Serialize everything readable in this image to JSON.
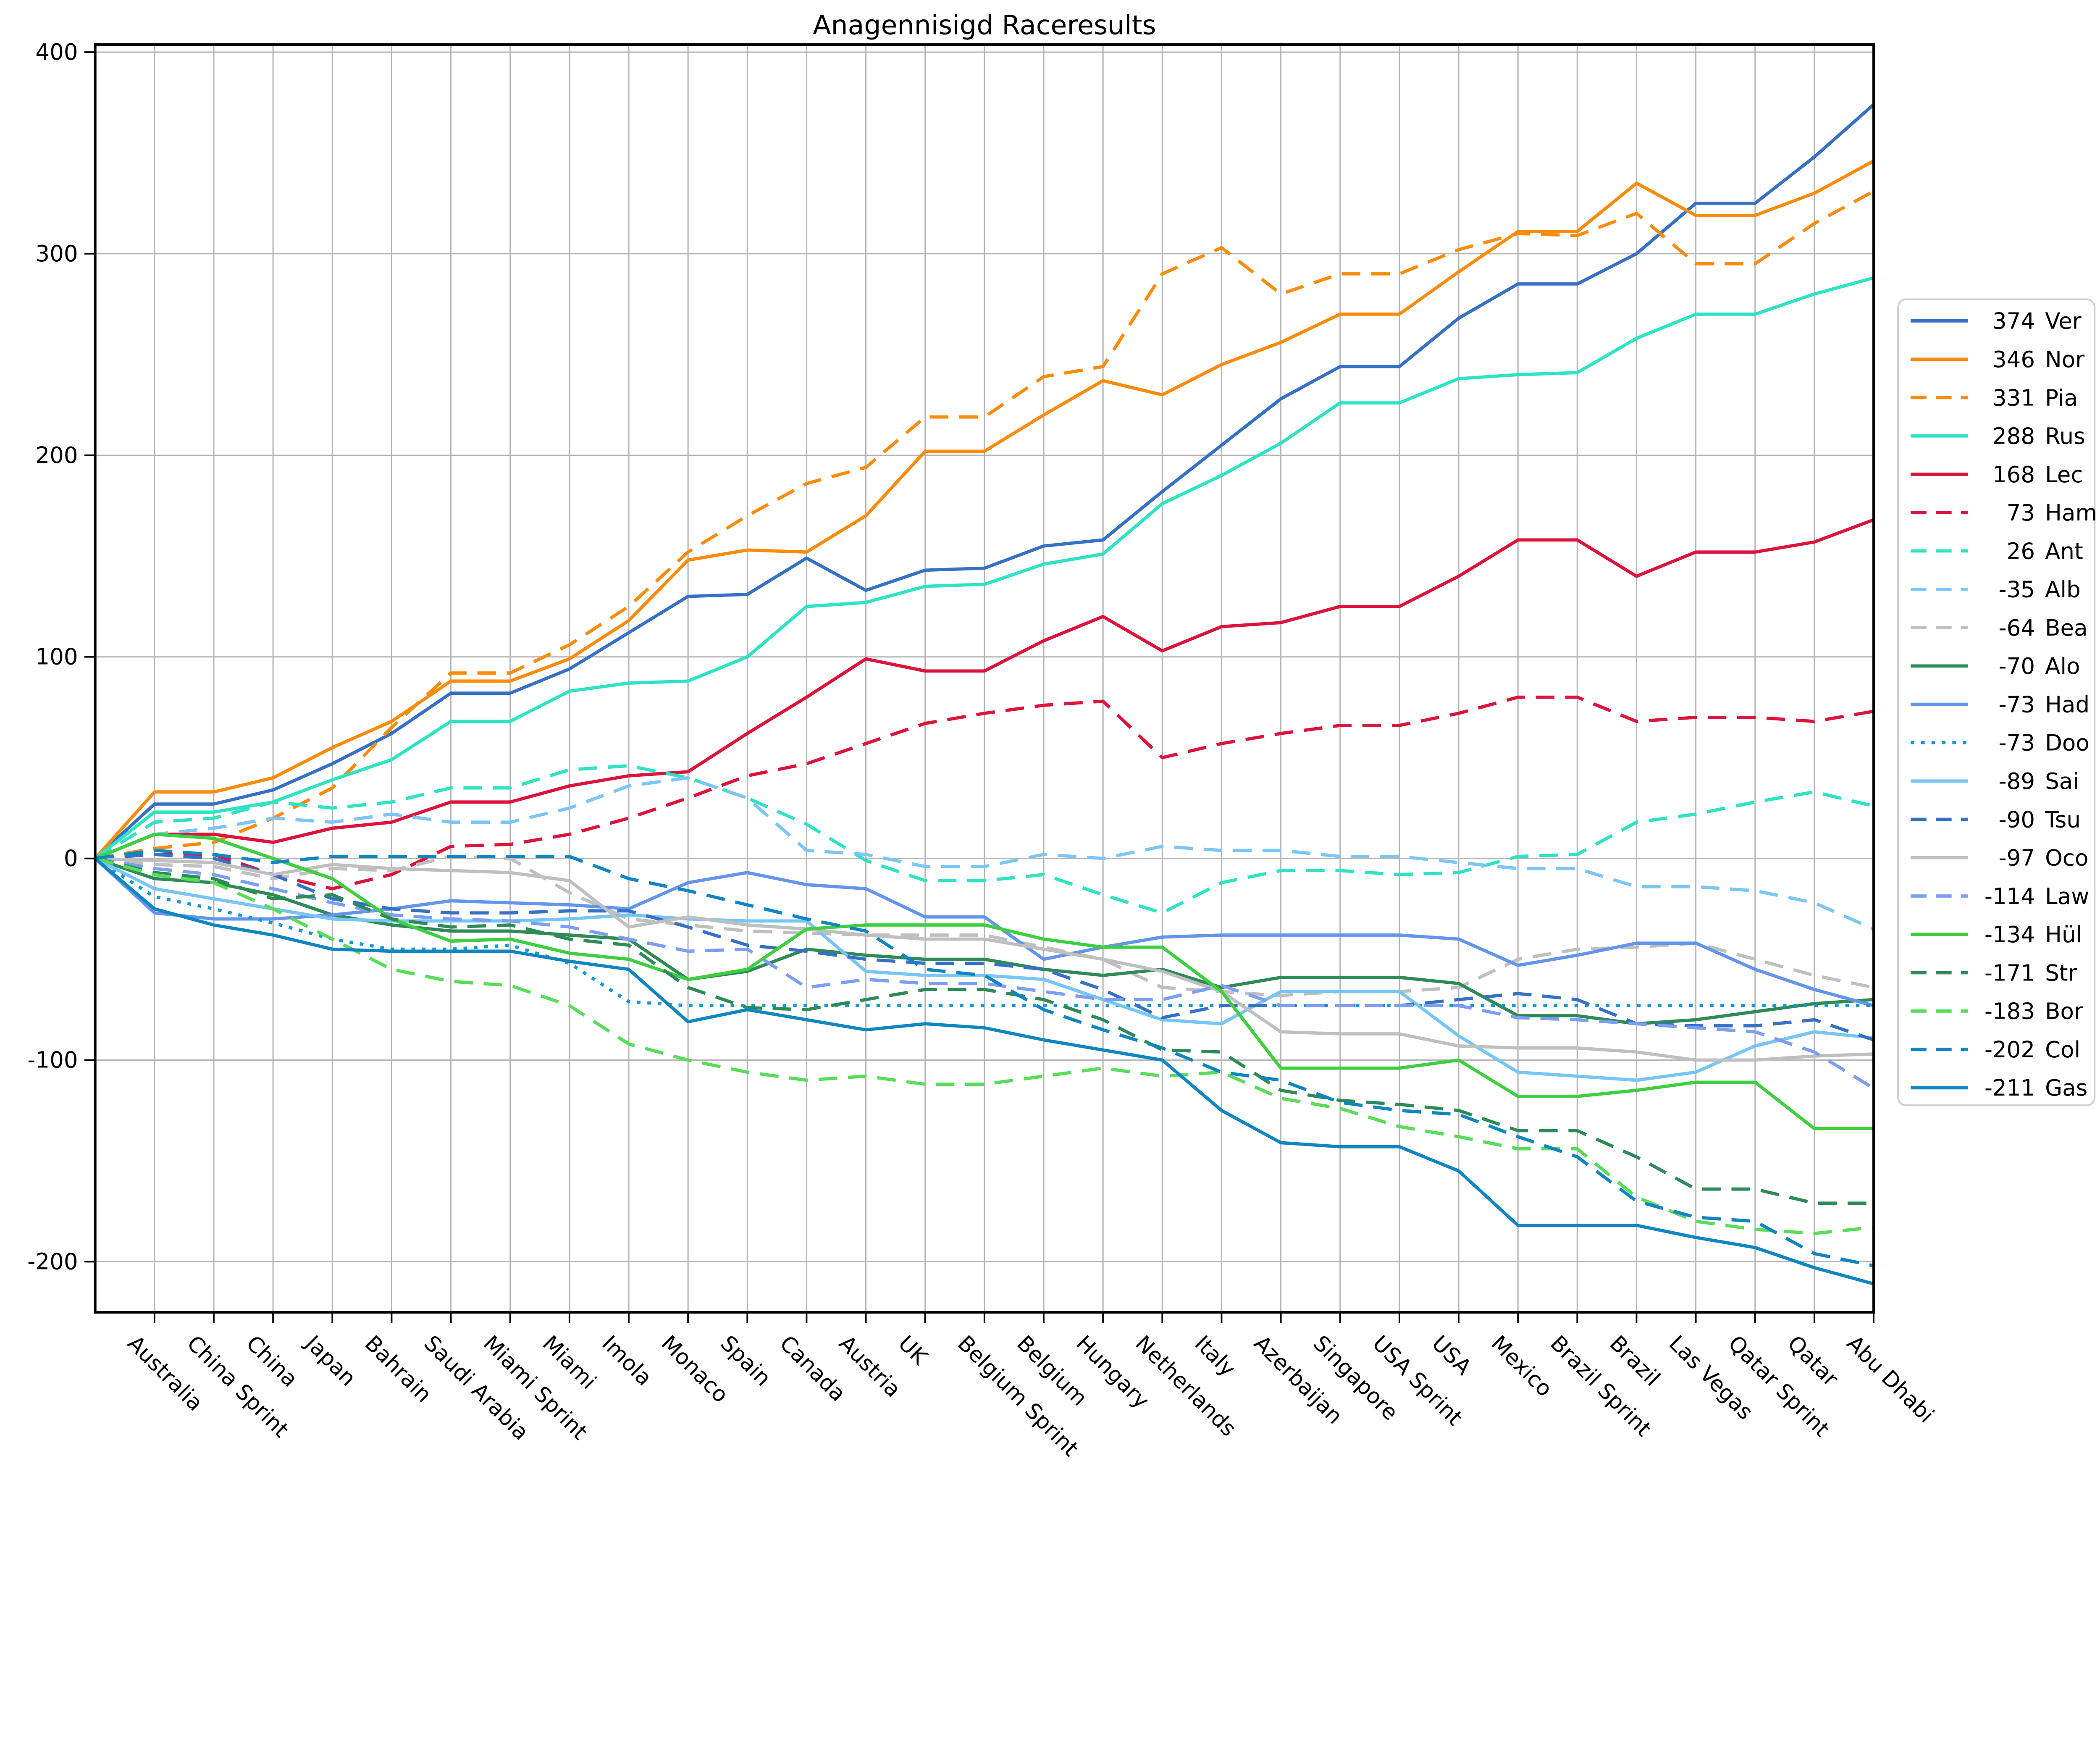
{
  "chart_data": {
    "type": "line",
    "title": "Anagennisigd Raceresults",
    "xlabel": "",
    "ylabel": "",
    "grid": true,
    "legend_position": "right-outside",
    "ylim": [
      -225,
      404
    ],
    "yticks": [
      400,
      300,
      200,
      100,
      0,
      -100,
      -200
    ],
    "note_start": "All series start at 0 on the left axis one slot before the first race",
    "start_value": 0,
    "categories": [
      "Australia",
      "China Sprint",
      "China",
      "Japan",
      "Bahrain",
      "Saudi Arabia",
      "Miami Sprint",
      "Miami",
      "Imola",
      "Monaco",
      "Spain",
      "Canada",
      "Austria",
      "UK",
      "Belgium Sprint",
      "Belgium",
      "Hungary",
      "Netherlands",
      "Italy",
      "Azerbaijan",
      "Singapore",
      "USA Sprint",
      "USA",
      "Mexico",
      "Brazil Sprint",
      "Brazil",
      "Las Vegas",
      "Qatar Sprint",
      "Qatar",
      "Abu Dhabi"
    ],
    "series": [
      {
        "name": "Ver",
        "legend_label": "374 Ver",
        "final": 374,
        "color": "#3671c6",
        "style": "solid",
        "values": [
          27,
          27,
          34,
          47,
          62,
          82,
          82,
          94,
          112,
          130,
          131,
          149,
          133,
          143,
          144,
          155,
          158,
          182,
          205,
          228,
          244,
          244,
          268,
          285,
          285,
          300,
          325,
          325,
          348,
          374
        ]
      },
      {
        "name": "Nor",
        "legend_label": "346 Nor",
        "final": 346,
        "color": "#fb8b0b",
        "style": "solid",
        "values": [
          33,
          33,
          40,
          55,
          68,
          88,
          88,
          99,
          118,
          148,
          153,
          152,
          170,
          202,
          202,
          220,
          237,
          230,
          245,
          256,
          270,
          270,
          291,
          311,
          311,
          335,
          319,
          319,
          330,
          346
        ]
      },
      {
        "name": "Pia",
        "legend_label": "331 Pia",
        "final": 331,
        "color": "#fb8b0b",
        "style": "dashed",
        "values": [
          5,
          8,
          20,
          35,
          65,
          92,
          92,
          106,
          125,
          152,
          170,
          186,
          194,
          219,
          219,
          239,
          244,
          290,
          303,
          280,
          290,
          290,
          302,
          310,
          309,
          320,
          295,
          295,
          315,
          331
        ]
      },
      {
        "name": "Rus",
        "legend_label": "288 Rus",
        "final": 288,
        "color": "#2ee3c3",
        "style": "solid",
        "values": [
          23,
          23,
          28,
          39,
          49,
          68,
          68,
          83,
          87,
          88,
          100,
          125,
          127,
          135,
          136,
          146,
          151,
          176,
          190,
          206,
          226,
          226,
          238,
          240,
          241,
          258,
          270,
          270,
          280,
          288
        ]
      },
      {
        "name": "Lec",
        "legend_label": "168 Lec",
        "final": 168,
        "color": "#dc143c",
        "style": "solid",
        "values": [
          12,
          12,
          8,
          15,
          18,
          28,
          28,
          36,
          41,
          43,
          62,
          80,
          99,
          93,
          93,
          108,
          120,
          103,
          115,
          117,
          125,
          125,
          140,
          158,
          158,
          140,
          152,
          152,
          157,
          168
        ]
      },
      {
        "name": "Ham",
        "legend_label": "73 Ham",
        "final": 73,
        "color": "#dc143c",
        "style": "dashed",
        "values": [
          2,
          2,
          -8,
          -15,
          -8,
          6,
          7,
          12,
          20,
          30,
          41,
          47,
          57,
          67,
          72,
          76,
          78,
          50,
          57,
          62,
          66,
          66,
          72,
          80,
          80,
          68,
          70,
          70,
          68,
          73
        ]
      },
      {
        "name": "Ant",
        "legend_label": "26 Ant",
        "final": 26,
        "color": "#2ee3c3",
        "style": "dashed",
        "values": [
          18,
          20,
          28,
          25,
          28,
          35,
          35,
          44,
          46,
          40,
          30,
          17,
          -1,
          -11,
          -11,
          -8,
          -18,
          -27,
          -12,
          -6,
          -6,
          -8,
          -7,
          1,
          2,
          18,
          22,
          28,
          33,
          26
        ]
      },
      {
        "name": "Alb",
        "legend_label": "-35 Alb",
        "final": -35,
        "color": "#7cc6f7",
        "style": "dashed",
        "values": [
          12,
          15,
          20,
          18,
          22,
          18,
          18,
          25,
          36,
          40,
          30,
          4,
          2,
          -4,
          -4,
          2,
          0,
          6,
          4,
          4,
          1,
          1,
          -2,
          -5,
          -5,
          -14,
          -14,
          -16,
          -22,
          -35
        ]
      },
      {
        "name": "Bea",
        "legend_label": "-64 Bea",
        "final": -64,
        "color": "#bfbfbf",
        "style": "dashed",
        "values": [
          -3,
          -4,
          -10,
          -5,
          -6,
          1,
          0,
          -17,
          -30,
          -33,
          -36,
          -37,
          -38,
          -38,
          -38,
          -44,
          -50,
          -64,
          -66,
          -68,
          -66,
          -66,
          -64,
          -50,
          -45,
          -44,
          -42,
          -50,
          -58,
          -64
        ]
      },
      {
        "name": "Alo",
        "legend_label": "-70 Alo",
        "final": -70,
        "color": "#2e8b57",
        "style": "solid",
        "values": [
          -10,
          -12,
          -18,
          -28,
          -33,
          -36,
          -36,
          -38,
          -40,
          -60,
          -56,
          -45,
          -48,
          -50,
          -50,
          -55,
          -58,
          -55,
          -64,
          -59,
          -59,
          -59,
          -62,
          -78,
          -78,
          -82,
          -80,
          -76,
          -72,
          -70
        ]
      },
      {
        "name": "Had",
        "legend_label": "-73 Had",
        "final": -73,
        "color": "#6495ed",
        "style": "solid",
        "values": [
          -27,
          -30,
          -30,
          -28,
          -25,
          -21,
          -22,
          -23,
          -25,
          -12,
          -7,
          -13,
          -15,
          -29,
          -29,
          -50,
          -44,
          -39,
          -38,
          -38,
          -38,
          -38,
          -40,
          -53,
          -48,
          -42,
          -42,
          -55,
          -65,
          -73
        ]
      },
      {
        "name": "Doo",
        "legend_label": "-73 Doo",
        "final": -73,
        "color": "#1697d6",
        "style": "dotted",
        "values": [
          -19,
          -25,
          -32,
          -40,
          -45,
          -45,
          -43,
          -52,
          -71,
          -73,
          -73,
          -73,
          -73,
          -73,
          -73,
          -73,
          -73,
          -73,
          -73,
          -73,
          -73,
          -73,
          -73,
          -73,
          -73,
          -73,
          -73,
          -73,
          -73,
          -73
        ]
      },
      {
        "name": "Sai",
        "legend_label": "-89 Sai",
        "final": -89,
        "color": "#76c6f5",
        "style": "solid",
        "values": [
          -15,
          -20,
          -25,
          -30,
          -31,
          -31,
          -31,
          -30,
          -28,
          -30,
          -31,
          -31,
          -56,
          -58,
          -58,
          -60,
          -70,
          -80,
          -82,
          -66,
          -66,
          -66,
          -88,
          -106,
          -108,
          -110,
          -106,
          -93,
          -86,
          -89
        ]
      },
      {
        "name": "Tsu",
        "legend_label": "-90 Tsu",
        "final": -90,
        "color": "#3671c6",
        "style": "dashed",
        "values": [
          2,
          0,
          -8,
          -20,
          -25,
          -27,
          -27,
          -26,
          -26,
          -34,
          -43,
          -46,
          -50,
          -52,
          -52,
          -55,
          -65,
          -79,
          -73,
          -73,
          -73,
          -73,
          -70,
          -67,
          -70,
          -82,
          -83,
          -83,
          -80,
          -90
        ]
      },
      {
        "name": "Oco",
        "legend_label": "-97 Oco",
        "final": -97,
        "color": "#bfbfbf",
        "style": "solid",
        "values": [
          -1,
          -2,
          -8,
          -3,
          -5,
          -6,
          -7,
          -11,
          -34,
          -29,
          -33,
          -35,
          -38,
          -40,
          -40,
          -45,
          -50,
          -56,
          -66,
          -86,
          -87,
          -87,
          -93,
          -94,
          -94,
          -96,
          -100,
          -100,
          -98,
          -97
        ]
      },
      {
        "name": "Law",
        "legend_label": "-114 Law",
        "final": -114,
        "color": "#7c9ef5",
        "style": "dashed",
        "values": [
          -5,
          -8,
          -15,
          -22,
          -28,
          -30,
          -31,
          -34,
          -40,
          -46,
          -45,
          -64,
          -60,
          -62,
          -62,
          -66,
          -70,
          -70,
          -63,
          -73,
          -73,
          -73,
          -73,
          -79,
          -80,
          -82,
          -84,
          -86,
          -96,
          -114
        ]
      },
      {
        "name": "Hül",
        "legend_label": "-134 Hül",
        "final": -134,
        "color": "#3ecf41",
        "style": "solid",
        "values": [
          12,
          10,
          0,
          -10,
          -30,
          -41,
          -40,
          -47,
          -50,
          -60,
          -55,
          -35,
          -33,
          -33,
          -33,
          -40,
          -44,
          -44,
          -66,
          -104,
          -104,
          -104,
          -100,
          -118,
          -118,
          -115,
          -111,
          -111,
          -134,
          -134
        ]
      },
      {
        "name": "Str",
        "legend_label": "-171 Str",
        "final": -171,
        "color": "#2e8b57",
        "style": "dashed",
        "values": [
          -7,
          -10,
          -20,
          -18,
          -30,
          -34,
          -33,
          -40,
          -43,
          -64,
          -74,
          -75,
          -70,
          -65,
          -65,
          -70,
          -80,
          -95,
          -96,
          -115,
          -120,
          -122,
          -125,
          -135,
          -135,
          -148,
          -164,
          -164,
          -171,
          -171
        ]
      },
      {
        "name": "Bor",
        "legend_label": "-183 Bor",
        "final": -183,
        "color": "#57dd58",
        "style": "dashed",
        "values": [
          -8,
          -12,
          -25,
          -40,
          -55,
          -61,
          -63,
          -73,
          -92,
          -100,
          -106,
          -110,
          -108,
          -112,
          -112,
          -108,
          -104,
          -108,
          -106,
          -119,
          -124,
          -133,
          -138,
          -144,
          -144,
          -168,
          -180,
          -184,
          -186,
          -183
        ]
      },
      {
        "name": "Col",
        "legend_label": "-202 Col",
        "final": -202,
        "color": "#0f86c2",
        "style": "dashed",
        "values": [
          4,
          2,
          -2,
          1,
          1,
          1,
          1,
          1,
          -10,
          -16,
          -23,
          -30,
          -36,
          -55,
          -58,
          -75,
          -85,
          -94,
          -106,
          -110,
          -121,
          -125,
          -127,
          -138,
          -148,
          -170,
          -178,
          -180,
          -196,
          -202
        ]
      },
      {
        "name": "Gas",
        "legend_label": "-211 Gas",
        "final": -211,
        "color": "#0f86c2",
        "style": "solid",
        "values": [
          -25,
          -33,
          -38,
          -45,
          -46,
          -46,
          -46,
          -51,
          -55,
          -81,
          -75,
          -80,
          -85,
          -82,
          -84,
          -90,
          -95,
          -100,
          -125,
          -141,
          -143,
          -143,
          -155,
          -182,
          -182,
          -182,
          -188,
          -193,
          -203,
          -211
        ]
      }
    ]
  },
  "style_tokens": {
    "grid_color": "#b4b4b4",
    "spine_color": "#000000",
    "legend_border_color": "#d0d0d0",
    "background": "#ffffff",
    "line_width": 9,
    "dash_pattern": "52 30",
    "dot_pattern": "10 19"
  }
}
